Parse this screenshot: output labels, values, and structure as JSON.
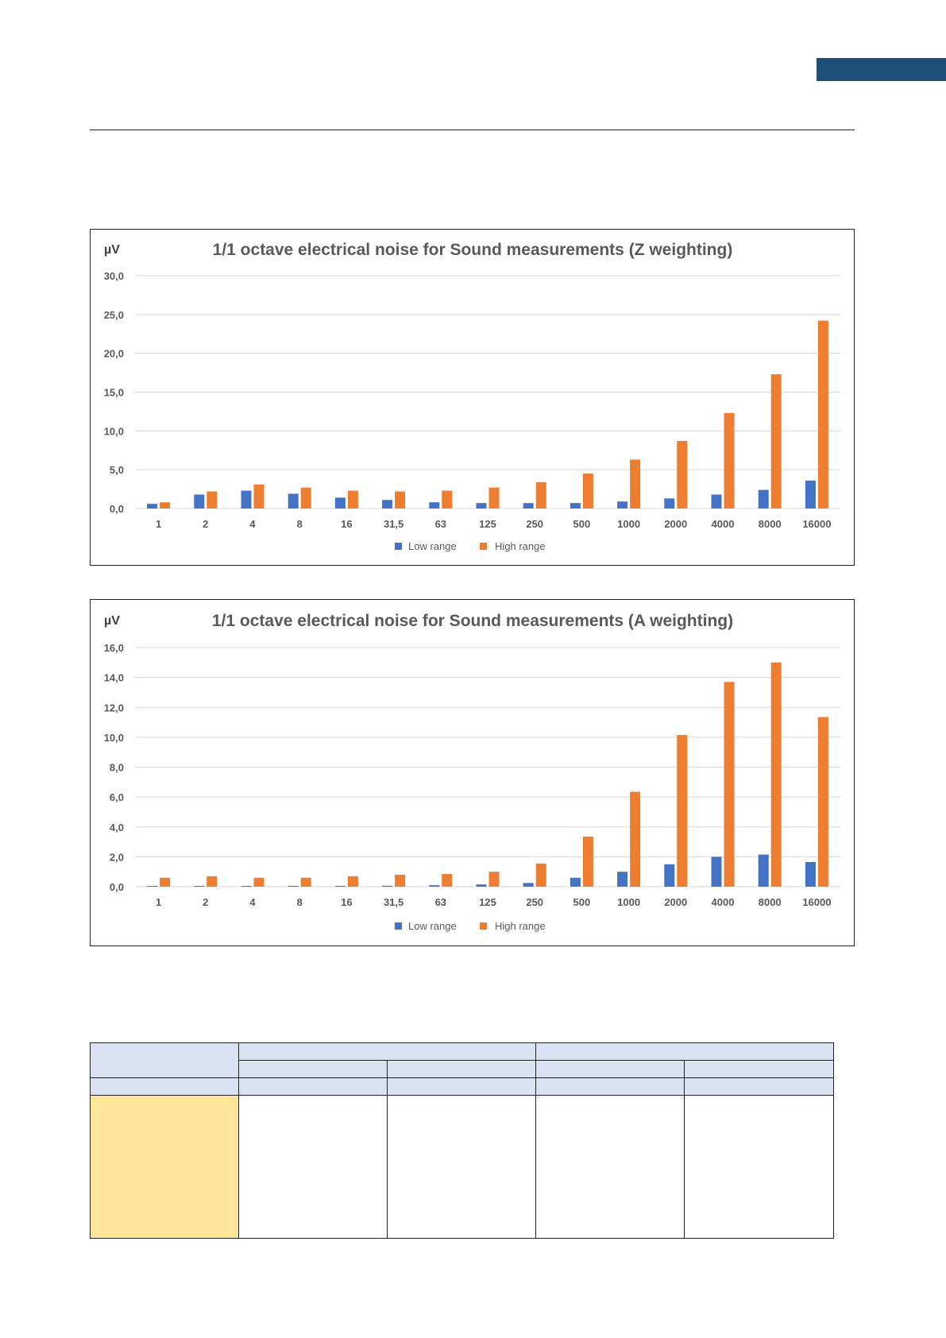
{
  "colors": {
    "low_range": "#4472c4",
    "high_range": "#ed7d31",
    "corner_tab": "#1f4e79",
    "table_header": "#d9e1f2",
    "table_highlight": "#ffe599",
    "grid": "#d9d9d9",
    "text": "#595959"
  },
  "chart_data": [
    {
      "type": "bar",
      "title": "1/1 octave electrical noise for Sound measurements (Z weighting)",
      "ylabel": "µV",
      "xlabel": "",
      "ylim": [
        0,
        30
      ],
      "yticks": [
        "0,0",
        "5,0",
        "10,0",
        "15,0",
        "20,0",
        "25,0",
        "30,0"
      ],
      "categories": [
        "1",
        "2",
        "4",
        "8",
        "16",
        "31,5",
        "63",
        "125",
        "250",
        "500",
        "1000",
        "2000",
        "4000",
        "8000",
        "16000"
      ],
      "series": [
        {
          "name": "Low range",
          "values": [
            0.6,
            1.8,
            2.3,
            1.9,
            1.4,
            1.1,
            0.8,
            0.7,
            0.7,
            0.7,
            0.9,
            1.3,
            1.8,
            2.4,
            3.6
          ]
        },
        {
          "name": "High range",
          "values": [
            0.8,
            2.2,
            3.1,
            2.7,
            2.3,
            2.2,
            2.3,
            2.7,
            3.4,
            4.5,
            6.3,
            8.7,
            12.3,
            17.3,
            24.2
          ]
        }
      ],
      "grid": true,
      "legend": "bottom"
    },
    {
      "type": "bar",
      "title": "1/1 octave electrical noise for Sound measurements (A weighting)",
      "ylabel": "µV",
      "xlabel": "",
      "ylim": [
        0,
        16
      ],
      "yticks": [
        "0,0",
        "2,0",
        "4,0",
        "6,0",
        "8,0",
        "10,0",
        "12,0",
        "14,0",
        "16,0"
      ],
      "categories": [
        "1",
        "2",
        "4",
        "8",
        "16",
        "31,5",
        "63",
        "125",
        "250",
        "500",
        "1000",
        "2000",
        "4000",
        "8000",
        "16000"
      ],
      "series": [
        {
          "name": "Low range",
          "values": [
            0.05,
            0.05,
            0.05,
            0.05,
            0.05,
            0.06,
            0.1,
            0.15,
            0.25,
            0.6,
            1.0,
            1.5,
            2.0,
            2.15,
            1.65
          ]
        },
        {
          "name": "High range",
          "values": [
            0.6,
            0.7,
            0.6,
            0.6,
            0.7,
            0.8,
            0.85,
            1.0,
            1.55,
            3.35,
            6.35,
            10.15,
            13.7,
            15.0,
            11.35
          ]
        }
      ],
      "grid": true,
      "legend": "bottom"
    }
  ]
}
